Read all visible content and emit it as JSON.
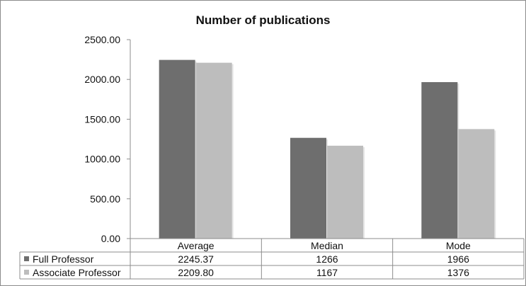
{
  "chart_data": {
    "type": "bar",
    "title": "Number of publications",
    "categories": [
      "Average",
      "Median",
      "Mode"
    ],
    "series": [
      {
        "name": "Full Professor",
        "values": [
          2245.37,
          1266,
          1966
        ],
        "labels": [
          "2245.37",
          "1266",
          "1966"
        ],
        "color": "#6e6e6e"
      },
      {
        "name": "Associate Professor",
        "values": [
          2209.8,
          1167,
          1376
        ],
        "labels": [
          "2209.80",
          "1167",
          "1376"
        ],
        "color": "#bdbdbd"
      }
    ],
    "yticks": [
      "0.00",
      "500.00",
      "1000.00",
      "1500.00",
      "2000.00",
      "2500.00"
    ],
    "ylim": [
      0,
      2500
    ],
    "grid": false,
    "legend": "data-table"
  }
}
